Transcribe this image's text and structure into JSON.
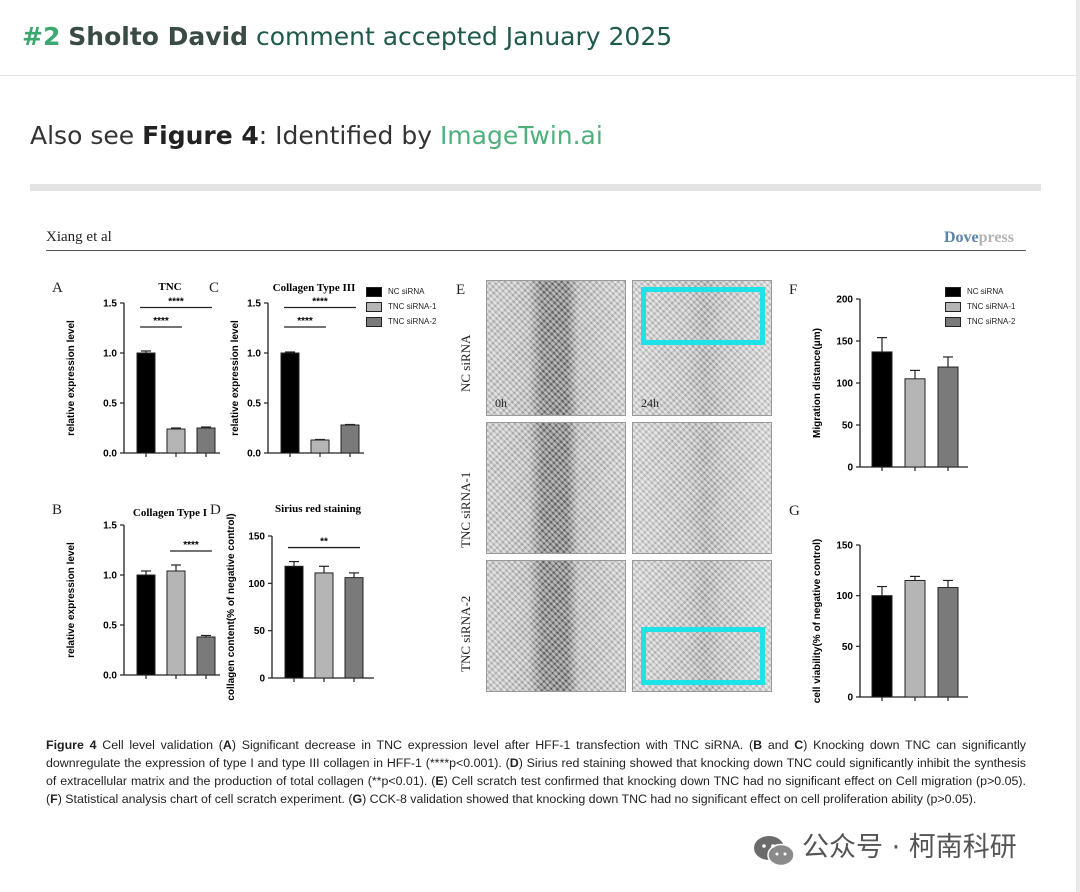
{
  "header": {
    "number": "#2",
    "author": "Sholto David",
    "rest": "comment accepted January 2025"
  },
  "note": {
    "prefix": "Also see ",
    "figure_ref": "Figure 4",
    "middle": ": Identified by ",
    "link_text": "ImageTwin.ai"
  },
  "figure": {
    "running_head": "Xiang et al",
    "brand_a": "Dove",
    "brand_b": "press",
    "legend": [
      "NC siRNA",
      "TNC siRNA-1",
      "TNC siRNA-2"
    ],
    "micro": {
      "rows": [
        "NC siRNA",
        "TNC siRNA-1",
        "TNC siRNA-2"
      ],
      "time_0": "0h",
      "time_24": "24h"
    },
    "caption": {
      "fig_label": "Figure 4",
      "t1": " Cell level validation (",
      "A": "A",
      "t2": ") Significant decrease in TNC expression level after HFF-1 transfection with TNC siRNA. (",
      "B": "B",
      "t3": " and ",
      "C": "C",
      "t4": ") Knocking down TNC can significantly downregulate the expression of type I and type III collagen in HFF-1 (****p<0.001). (",
      "D": "D",
      "t5": ") Sirius red staining showed that knocking down TNC could significantly inhibit the synthesis of extracellular matrix and the production of total collagen (**p<0.01). (",
      "E": "E",
      "t6": ") Cell scratch test confirmed that knocking down TNC had no significant effect on Cell migration (p>0.05). (",
      "F": "F",
      "t7": ") Statistical analysis chart of cell scratch experiment. (",
      "G": "G",
      "t8": ") CCK-8 validation showed that knocking down TNC had no significant effect on cell proliferation ability (p>0.05)."
    }
  },
  "watermark": {
    "text": "公众号 · 柯南科研"
  },
  "colors": {
    "series": [
      "#000000",
      "#b5b5b5",
      "#7a7a7a"
    ],
    "accent": "#3aa86f",
    "cyan": "#1de3e6"
  },
  "chart_data": [
    {
      "panel": "A",
      "type": "bar",
      "title": "TNC",
      "ylabel": "relative expression level",
      "categories": [
        "NC siRNA",
        "TNC siRNA-1",
        "TNC siRNA-2"
      ],
      "values": [
        1.0,
        0.24,
        0.25
      ],
      "errors": [
        0.02,
        0.01,
        0.01
      ],
      "ylim": [
        0,
        1.5
      ],
      "yticks": [
        "0.0",
        "0.5",
        "1.0",
        "1.5"
      ],
      "sig": [
        {
          "from": 0,
          "to": 1,
          "label": "****"
        },
        {
          "from": 0,
          "to": 2,
          "label": "****"
        }
      ]
    },
    {
      "panel": "C",
      "type": "bar",
      "title": "Collagen Type III",
      "ylabel": "relative expression level",
      "categories": [
        "NC siRNA",
        "TNC siRNA-1",
        "TNC siRNA-2"
      ],
      "values": [
        1.0,
        0.13,
        0.28
      ],
      "errors": [
        0.01,
        0.005,
        0.005
      ],
      "ylim": [
        0,
        1.5
      ],
      "yticks": [
        "0.0",
        "0.5",
        "1.0",
        "1.5"
      ],
      "sig": [
        {
          "from": 0,
          "to": 1,
          "label": "****"
        },
        {
          "from": 0,
          "to": 2,
          "label": "****"
        }
      ]
    },
    {
      "panel": "B",
      "type": "bar",
      "title": "Collagen Type I",
      "ylabel": "relative expression level",
      "categories": [
        "NC siRNA",
        "TNC siRNA-1",
        "TNC siRNA-2"
      ],
      "values": [
        1.0,
        1.04,
        0.38
      ],
      "errors": [
        0.04,
        0.06,
        0.015
      ],
      "ylim": [
        0,
        1.5
      ],
      "yticks": [
        "0.0",
        "0.5",
        "1.0",
        "1.5"
      ],
      "sig": [
        {
          "from": 1,
          "to": 2,
          "label": "****"
        }
      ]
    },
    {
      "panel": "D",
      "type": "bar",
      "title": "Sirius red staining",
      "ylabel": "collagen content(% of negative control)",
      "categories": [
        "NC siRNA",
        "TNC siRNA-1",
        "TNC siRNA-2"
      ],
      "values": [
        118,
        111,
        106
      ],
      "errors": [
        5,
        7,
        5
      ],
      "ylim": [
        0,
        150
      ],
      "yticks": [
        "0",
        "50",
        "100",
        "150"
      ],
      "sig": [
        {
          "from": 0,
          "to": 2,
          "label": "**"
        }
      ]
    },
    {
      "panel": "F",
      "type": "bar",
      "title": "",
      "ylabel": "Migration distance(μm)",
      "categories": [
        "NC siRNA",
        "TNC siRNA-1",
        "TNC siRNA-2"
      ],
      "values": [
        137,
        105,
        119
      ],
      "errors": [
        17,
        10,
        12
      ],
      "ylim": [
        0,
        200
      ],
      "yticks": [
        "0",
        "50",
        "100",
        "150",
        "200"
      ],
      "sig": []
    },
    {
      "panel": "G",
      "type": "bar",
      "title": "",
      "ylabel": "cell viability(% of negative control)",
      "categories": [
        "NC siRNA",
        "TNC siRNA-1",
        "TNC siRNA-2"
      ],
      "values": [
        100,
        115,
        108
      ],
      "errors": [
        9,
        4,
        7
      ],
      "ylim": [
        0,
        150
      ],
      "yticks": [
        "0",
        "50",
        "100",
        "150"
      ],
      "sig": []
    }
  ]
}
